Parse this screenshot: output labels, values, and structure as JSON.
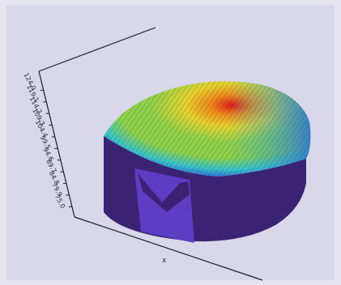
{
  "chart_data": {
    "type": "surface-3d",
    "title": "",
    "xlabel": "x",
    "ylabel": "",
    "zlabel": "",
    "z_ticks": [
      "124.0",
      "119.1",
      "114.2",
      "109.3",
      "104.4",
      "99.5",
      "94.6",
      "89.7",
      "84.8",
      "79.9",
      "75.0"
    ],
    "grid": false,
    "legend": "none",
    "colormap": [
      "#6a5fc2",
      "#2f78d8",
      "#38c4c9",
      "#8fd14a",
      "#e8d230",
      "#f08a1c",
      "#e01818"
    ],
    "colors": {
      "background": "#d9d7ea",
      "outer_border": "#e6e4ef",
      "base_side": "#3a2372",
      "base_side_light": "#5b3ec4",
      "axis_line": "#1b1b2e"
    }
  }
}
